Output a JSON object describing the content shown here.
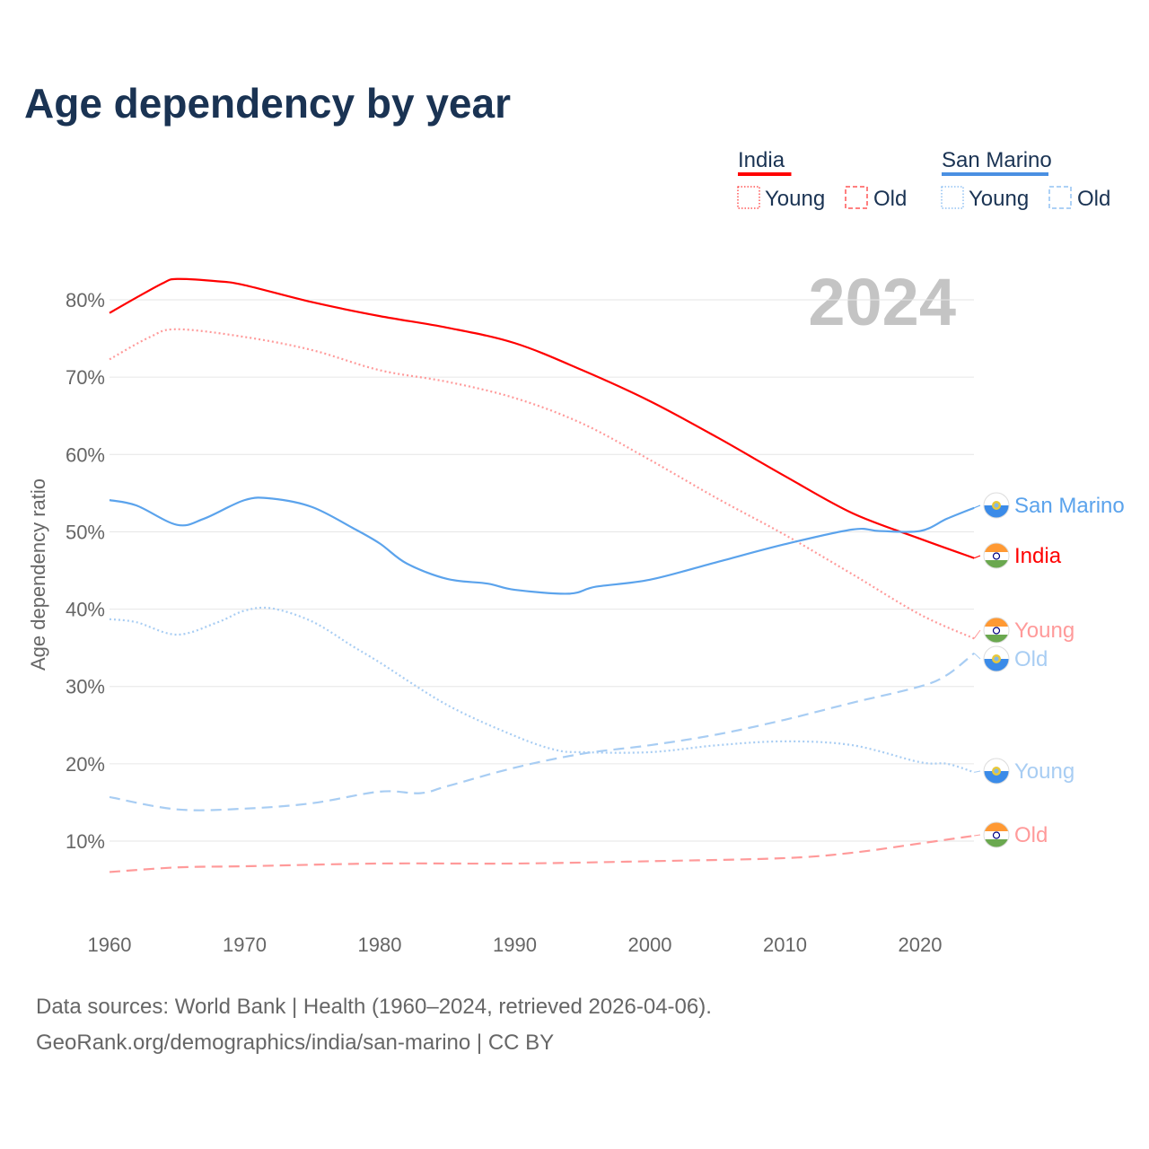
{
  "title": "Age dependency by year",
  "year_watermark": "2024",
  "legend": {
    "groups": [
      {
        "name": "India",
        "color": "#ff0000",
        "items": [
          "Young",
          "Old"
        ]
      },
      {
        "name": "San Marino",
        "color": "#4a90e2",
        "items": [
          "Young",
          "Old"
        ]
      }
    ]
  },
  "footer": {
    "line1": "Data sources: World Bank | Health (1960–2024, retrieved 2026-04-06).",
    "line2": "GeoRank.org/demographics/india/san-marino | CC BY"
  },
  "chart_data": {
    "type": "line",
    "title": "Age dependency by year",
    "xlabel": "",
    "ylabel": "Age dependency ratio",
    "xlim": [
      1960,
      2024
    ],
    "ylim": [
      0,
      85
    ],
    "xticks": [
      "1960",
      "1970",
      "1980",
      "1990",
      "2000",
      "2010",
      "2020"
    ],
    "yticks": [
      "10%",
      "20%",
      "30%",
      "40%",
      "50%",
      "60%",
      "70%",
      "80%"
    ],
    "series": [
      {
        "name": "India",
        "label": "India",
        "color": "#ff0000",
        "dash": "solid",
        "flag": "india",
        "x": [
          1960,
          1962,
          1964,
          1965,
          1968,
          1970,
          1975,
          1980,
          1985,
          1990,
          1995,
          2000,
          2005,
          2010,
          2015,
          2020,
          2024
        ],
        "y": [
          78.3,
          80.3,
          82.2,
          82.7,
          82.4,
          81.9,
          79.7,
          77.9,
          76.4,
          74.4,
          70.9,
          66.9,
          62.2,
          57.2,
          52.4,
          49.1,
          46.6
        ]
      },
      {
        "name": "India Young",
        "label": "Young",
        "color": "#ff9a9a",
        "dash": "dotted",
        "flag": "india",
        "x": [
          1960,
          1963,
          1965,
          1970,
          1975,
          1980,
          1985,
          1990,
          1995,
          2000,
          2005,
          2010,
          2015,
          2020,
          2024
        ],
        "y": [
          72.3,
          75.2,
          76.2,
          75.2,
          73.5,
          70.9,
          69.4,
          67.3,
          64.0,
          59.3,
          54.3,
          49.6,
          44.5,
          39.3,
          36.2
        ]
      },
      {
        "name": "India Old",
        "label": "Old",
        "color": "#ff9a9a",
        "dash": "dashed",
        "flag": "india",
        "x": [
          1960,
          1965,
          1970,
          1980,
          1990,
          2000,
          2010,
          2015,
          2020,
          2024
        ],
        "y": [
          6.0,
          6.6,
          6.75,
          7.1,
          7.1,
          7.4,
          7.8,
          8.5,
          9.7,
          10.7
        ]
      },
      {
        "name": "San Marino",
        "label": "San Marino",
        "color": "#5ba3ec",
        "dash": "solid",
        "flag": "san-marino",
        "x": [
          1960,
          1962,
          1965,
          1967,
          1970,
          1972,
          1975,
          1978,
          1980,
          1982,
          1985,
          1988,
          1990,
          1994,
          1996,
          2000,
          2005,
          2010,
          2015,
          2017,
          2020,
          2022,
          2024
        ],
        "y": [
          54.1,
          53.4,
          50.9,
          51.7,
          54.1,
          54.3,
          53.2,
          50.5,
          48.5,
          45.9,
          43.9,
          43.3,
          42.5,
          42.0,
          42.9,
          43.8,
          46.1,
          48.4,
          50.3,
          50.1,
          50.1,
          51.7,
          53.1
        ]
      },
      {
        "name": "San Marino Young",
        "label": "Young",
        "color": "#a8cdf3",
        "dash": "dotted",
        "flag": "san-marino",
        "x": [
          1960,
          1962,
          1965,
          1968,
          1970,
          1972,
          1975,
          1978,
          1980,
          1985,
          1990,
          1993,
          1995,
          2000,
          2005,
          2010,
          2015,
          2020,
          2022,
          2024
        ],
        "y": [
          38.7,
          38.3,
          36.7,
          38.3,
          39.8,
          40.1,
          38.4,
          35.2,
          33.1,
          27.6,
          23.6,
          21.8,
          21.5,
          21.5,
          22.4,
          22.9,
          22.4,
          20.2,
          20.0,
          18.9
        ]
      },
      {
        "name": "San Marino Old",
        "label": "Old",
        "color": "#a8cdf3",
        "dash": "dashed",
        "flag": "san-marino",
        "x": [
          1960,
          1965,
          1970,
          1975,
          1980,
          1983,
          1985,
          1990,
          1995,
          2000,
          2005,
          2010,
          2015,
          2020,
          2022,
          2024
        ],
        "y": [
          15.7,
          14.1,
          14.2,
          14.9,
          16.4,
          16.2,
          17.1,
          19.5,
          21.3,
          22.4,
          23.8,
          25.7,
          27.9,
          30.0,
          31.5,
          34.3
        ]
      }
    ],
    "end_labels_order": [
      "San Marino",
      "India",
      "India Young",
      "San Marino Old",
      "San Marino Young",
      "India Old"
    ]
  }
}
